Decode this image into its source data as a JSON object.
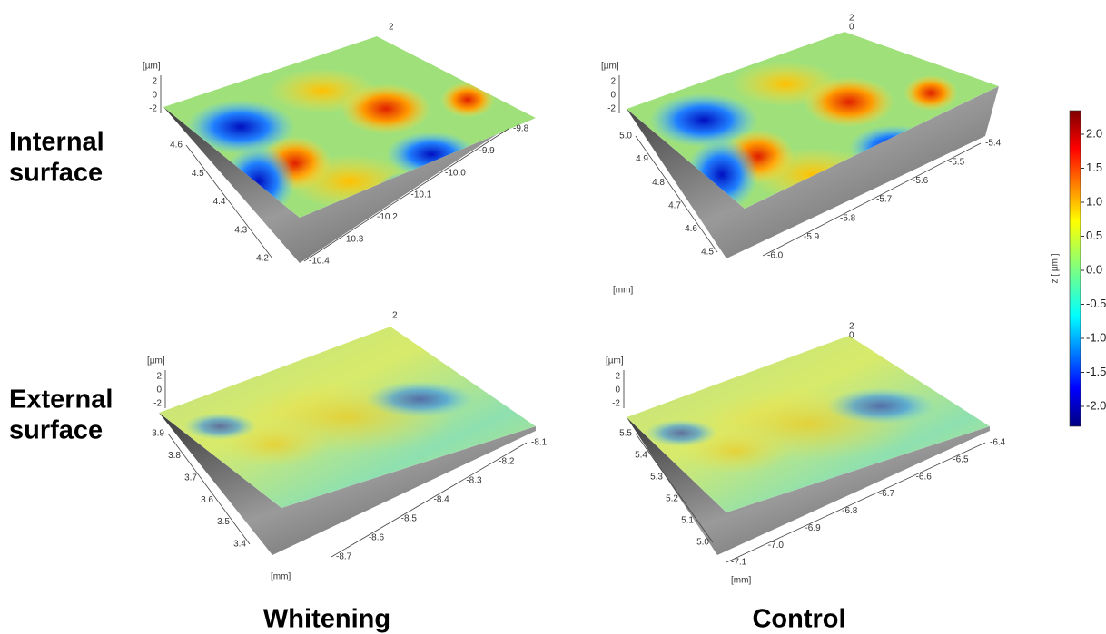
{
  "row_labels": [
    [
      "Internal",
      "surface"
    ],
    [
      "External",
      "surface"
    ]
  ],
  "column_labels": [
    "Whitening",
    "Control"
  ],
  "colorbar": {
    "label": "z [ µm ]",
    "ticks": [
      "2.0",
      "1.5",
      "1.0",
      "0.5",
      "0.0",
      "-0.5",
      "-1.0",
      "-1.5",
      "-2.0"
    ]
  },
  "panels": [
    {
      "z_unit": "[µm]",
      "z_ticks": [
        "2",
        "0",
        "-2"
      ],
      "peak_labels": [
        "2"
      ],
      "y_ticks": [
        "4.6",
        "4.5",
        "4.4",
        "4.3",
        "4.2"
      ],
      "x_ticks": [
        "-9.8",
        "-9.9",
        "-10.0",
        "-10.1",
        "-10.2",
        "-10.3",
        "-10.4"
      ]
    },
    {
      "z_unit": "[µm]",
      "z_ticks": [
        "2",
        "0",
        "-2"
      ],
      "peak_labels": [
        "2",
        "0"
      ],
      "y_ticks": [
        "5.0",
        "4.9",
        "4.8",
        "4.7",
        "4.6",
        "4.5"
      ],
      "x_ticks": [
        "-5.4",
        "-5.5",
        "-5.6",
        "-5.7",
        "-5.8",
        "-5.9",
        "-6.0"
      ],
      "x_unit": "[mm]"
    },
    {
      "z_unit": "[µm]",
      "z_ticks": [
        "2",
        "0",
        "-2"
      ],
      "peak_labels": [
        "2"
      ],
      "y_ticks": [
        "3.9",
        "3.8",
        "3.7",
        "3.6",
        "3.5",
        "3.4"
      ],
      "x_ticks": [
        "-8.1",
        "-8.2",
        "-8.3",
        "-8.4",
        "-8.5",
        "-8.6",
        "-8.7"
      ],
      "x_unit": "[mm]"
    },
    {
      "z_unit": "[µm]",
      "z_ticks": [
        "2",
        "0",
        "-2"
      ],
      "peak_labels": [
        "2",
        "0"
      ],
      "y_ticks": [
        "5.5",
        "5.4",
        "5.3",
        "5.2",
        "5.1",
        "5.0"
      ],
      "x_ticks": [
        "-6.4",
        "-6.5",
        "-6.6",
        "-6.7",
        "-6.8",
        "-6.9",
        "-7.0",
        "-7.1"
      ],
      "x_unit": "[mm]"
    }
  ]
}
